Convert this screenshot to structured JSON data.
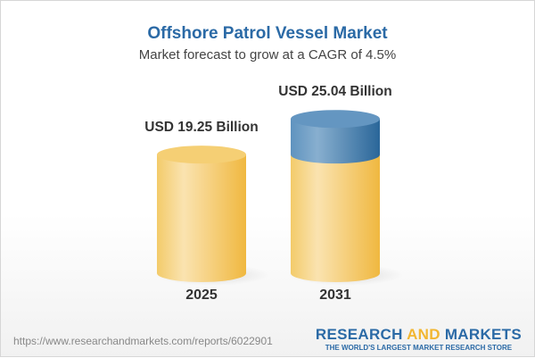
{
  "title": "Offshore Patrol Vessel Market",
  "subtitle": "Market forecast to grow at a CAGR of 4.5%",
  "chart_data": {
    "type": "bar",
    "style": "3d-cylinder",
    "categories": [
      "2025",
      "2031"
    ],
    "values": [
      19.25,
      25.04
    ],
    "data_labels": [
      "USD 19.25 Billion",
      "USD 25.04 Billion"
    ],
    "unit": "USD Billion",
    "colors": {
      "base": "#f2c65c",
      "growth": "#4f86b5"
    }
  },
  "footer": {
    "url": "https://www.researchandmarkets.com/reports/6022901",
    "logo_part1": "RESEARCH ",
    "logo_part2": "AND",
    "logo_part3": " MARKETS",
    "logo_tagline": "THE WORLD'S LARGEST MARKET RESEARCH STORE"
  }
}
